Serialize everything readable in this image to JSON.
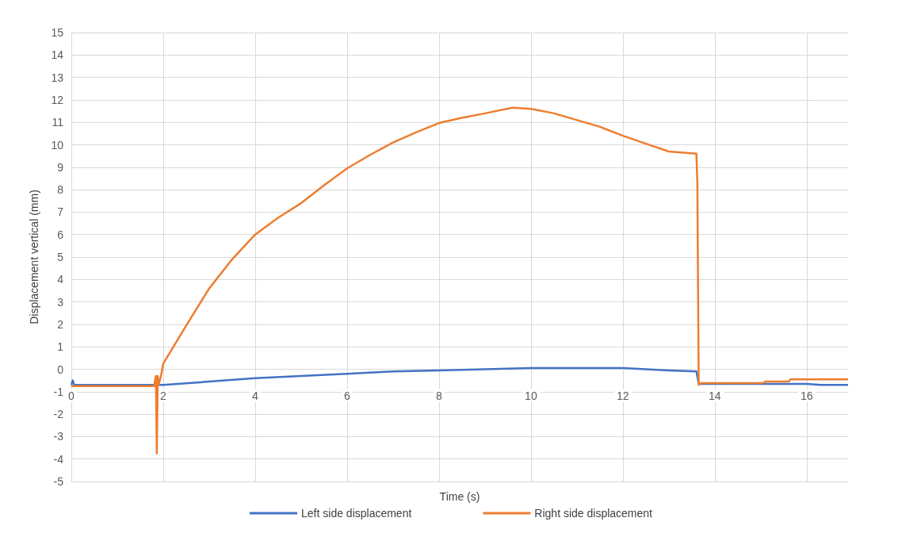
{
  "chart_data": {
    "type": "line",
    "xlabel": "Time (s)",
    "ylabel": "Displacement vertical (mm)",
    "xlim": [
      0,
      16.9
    ],
    "xticks": [
      0,
      2,
      4,
      6,
      8,
      10,
      12,
      14,
      16
    ],
    "ylim": [
      -5,
      15
    ],
    "yticks": [
      -5,
      -4,
      -3,
      -2,
      -1,
      0,
      1,
      2,
      3,
      4,
      5,
      6,
      7,
      8,
      9,
      10,
      11,
      12,
      13,
      14,
      15
    ],
    "grid": true,
    "legend": "bottom",
    "marker": "none",
    "line_style": "solid",
    "series": [
      {
        "name": "Left side displacement",
        "color": "#4472c4",
        "x": [
          0,
          0.03,
          0.06,
          0.1,
          2,
          3,
          4,
          5,
          6,
          7,
          8,
          9,
          10,
          11,
          12,
          13,
          13.6,
          13.65,
          15,
          16,
          16.3,
          16.9
        ],
        "values": [
          -0.7,
          -0.5,
          -0.7,
          -0.7,
          -0.7,
          -0.55,
          -0.4,
          -0.3,
          -0.2,
          -0.1,
          -0.05,
          0.0,
          0.05,
          0.05,
          0.05,
          -0.05,
          -0.1,
          -0.65,
          -0.65,
          -0.65,
          -0.7,
          -0.7
        ]
      },
      {
        "name": "Right side displacement",
        "color": "#ed7d31",
        "x": [
          0,
          0.1,
          1.8,
          1.84,
          1.86,
          1.88,
          1.9,
          1.95,
          2,
          2.25,
          2.5,
          3,
          3.5,
          4,
          4.5,
          5,
          5.5,
          6,
          6.5,
          7,
          7.5,
          8,
          8.5,
          9,
          9.6,
          10,
          10.5,
          11,
          11.5,
          12,
          12.5,
          13,
          13.6,
          13.62,
          13.65,
          13.7,
          15.05,
          15.1,
          15.6,
          15.65,
          16.9
        ],
        "values": [
          -0.75,
          -0.75,
          -0.75,
          -0.3,
          -3.75,
          -0.3,
          -0.7,
          -0.3,
          0.25,
          1.1,
          1.95,
          3.6,
          4.9,
          6.0,
          6.75,
          7.4,
          8.2,
          8.95,
          9.55,
          10.1,
          10.55,
          10.97,
          11.2,
          11.4,
          11.65,
          11.6,
          11.4,
          11.1,
          10.8,
          10.4,
          10.05,
          9.7,
          9.6,
          8.3,
          -0.7,
          -0.62,
          -0.62,
          -0.55,
          -0.55,
          -0.45,
          -0.45
        ]
      }
    ]
  }
}
